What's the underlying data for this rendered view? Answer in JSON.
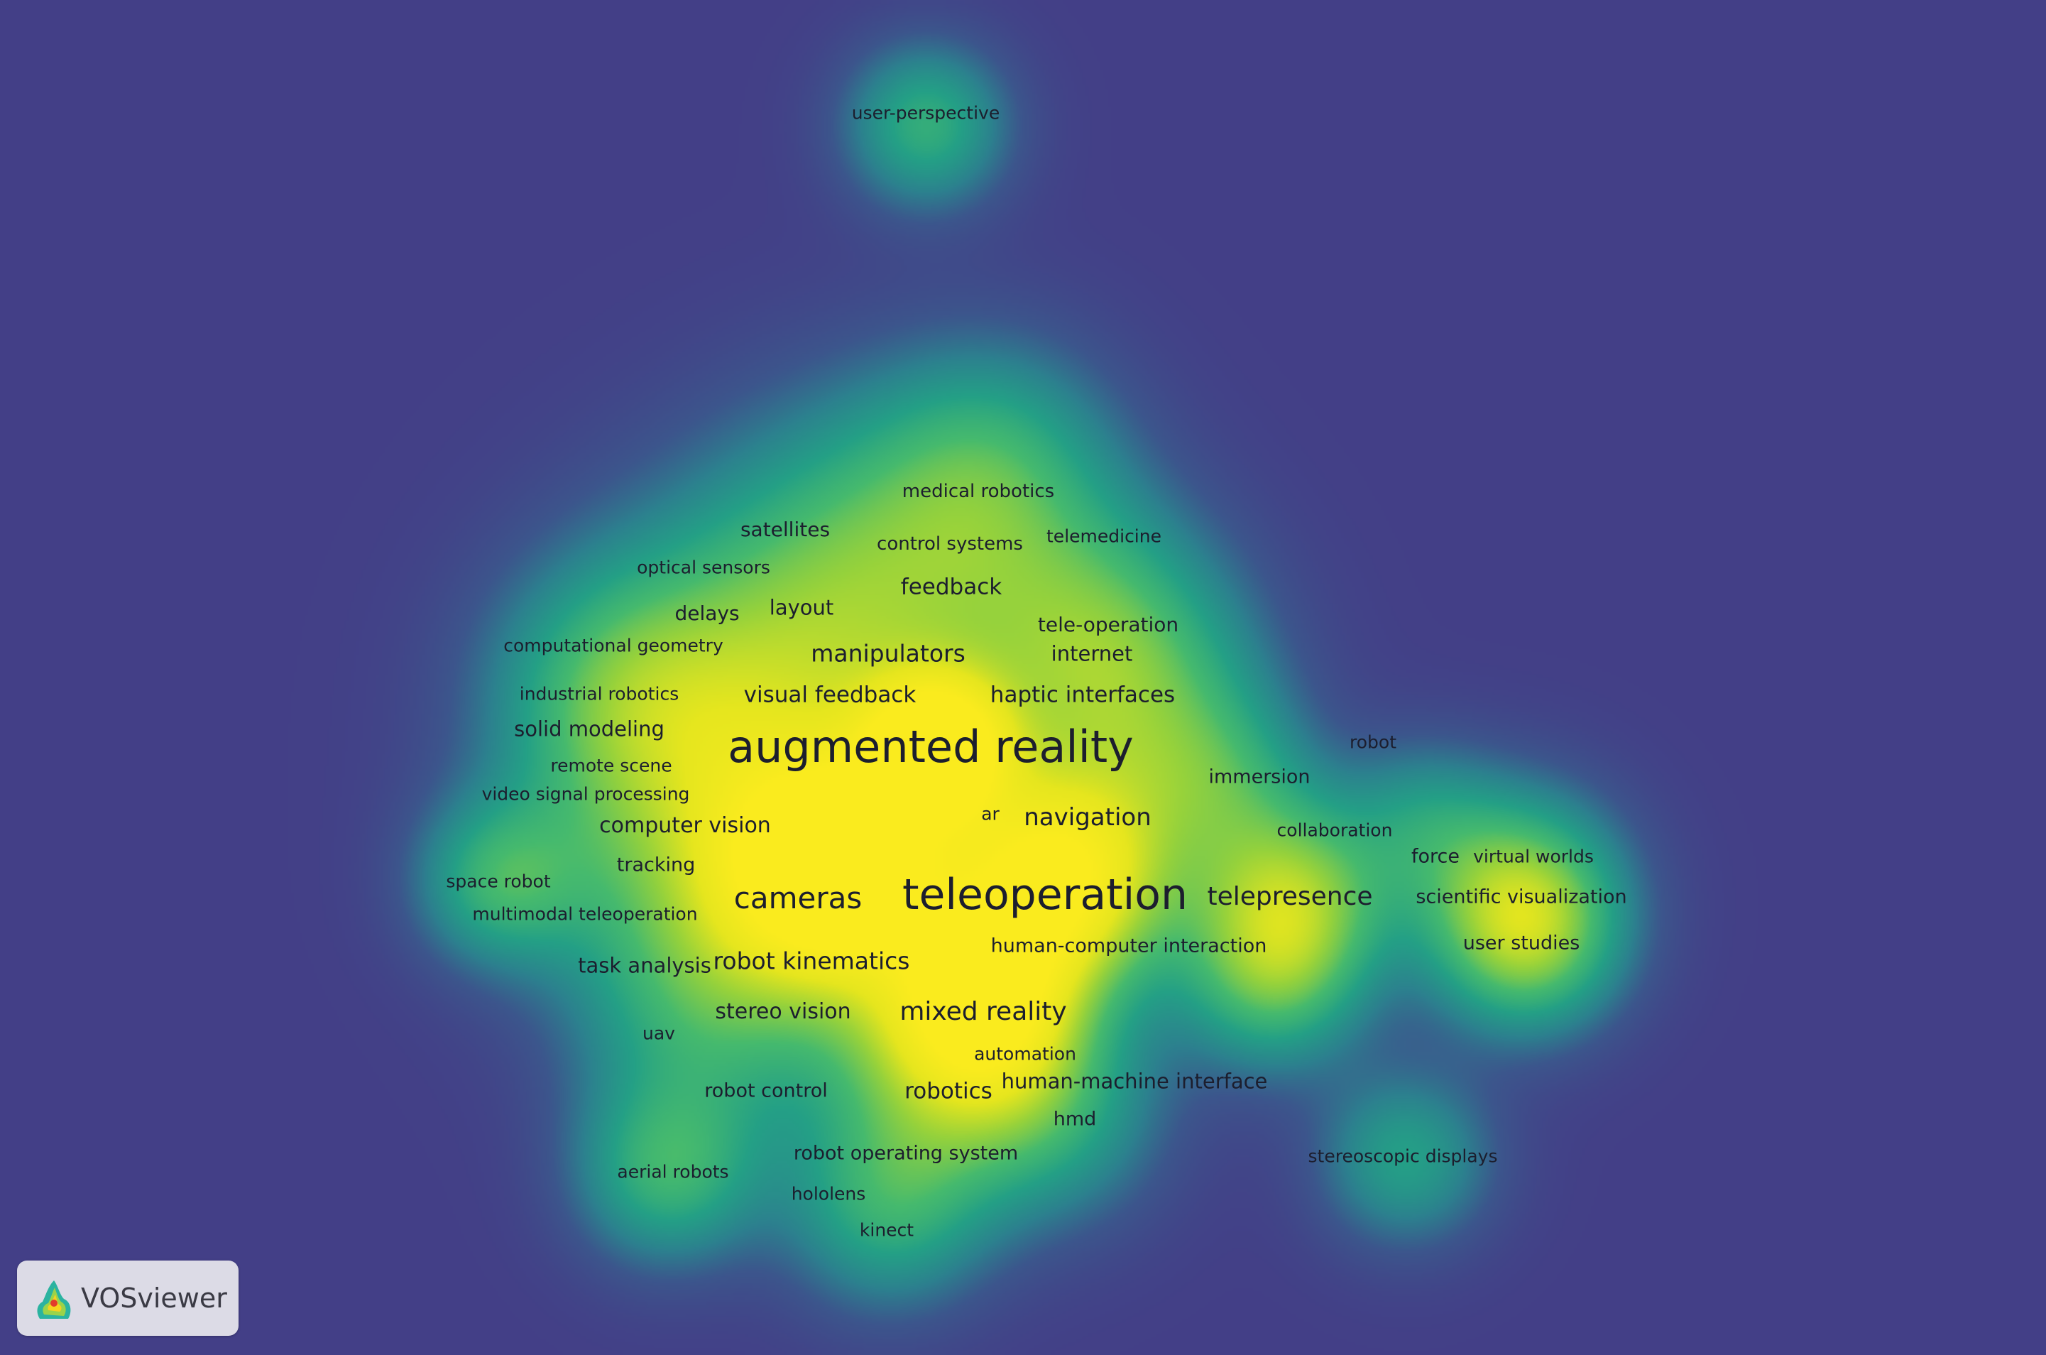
{
  "app": {
    "logo_text": "VOSviewer"
  },
  "colors": {
    "background": "#433f87",
    "teal": "#2c8b8c",
    "green": "#3cb878",
    "yellow": "#f6ea1e",
    "label": "#1c1e2e"
  },
  "terms": [
    {
      "text": "user-perspective",
      "weight": 1.0
    },
    {
      "text": "medical robotics",
      "weight": 1.0
    },
    {
      "text": "satellites",
      "weight": 1.0
    },
    {
      "text": "control systems",
      "weight": 1.0
    },
    {
      "text": "telemedicine",
      "weight": 1.0
    },
    {
      "text": "optical sensors",
      "weight": 1.0
    },
    {
      "text": "feedback",
      "weight": 2.0
    },
    {
      "text": "delays",
      "weight": 1.0
    },
    {
      "text": "layout",
      "weight": 1.2
    },
    {
      "text": "tele-operation",
      "weight": 1.2
    },
    {
      "text": "computational geometry",
      "weight": 1.0
    },
    {
      "text": "manipulators",
      "weight": 2.0
    },
    {
      "text": "internet",
      "weight": 1.2
    },
    {
      "text": "industrial robotics",
      "weight": 1.0
    },
    {
      "text": "visual feedback",
      "weight": 1.6
    },
    {
      "text": "haptic interfaces",
      "weight": 1.6
    },
    {
      "text": "solid modeling",
      "weight": 1.4
    },
    {
      "text": "augmented reality",
      "weight": 6.0
    },
    {
      "text": "robot",
      "weight": 1.0
    },
    {
      "text": "remote scene",
      "weight": 1.0
    },
    {
      "text": "immersion",
      "weight": 1.2
    },
    {
      "text": "video signal processing",
      "weight": 1.0
    },
    {
      "text": "ar",
      "weight": 1.0
    },
    {
      "text": "navigation",
      "weight": 2.2
    },
    {
      "text": "computer vision",
      "weight": 1.6
    },
    {
      "text": "collaboration",
      "weight": 1.0
    },
    {
      "text": "tracking",
      "weight": 1.0
    },
    {
      "text": "force",
      "weight": 1.0
    },
    {
      "text": "virtual worlds",
      "weight": 1.0
    },
    {
      "text": "space robot",
      "weight": 1.0
    },
    {
      "text": "cameras",
      "weight": 4.0
    },
    {
      "text": "teleoperation",
      "weight": 6.0
    },
    {
      "text": "telepresence",
      "weight": 2.2
    },
    {
      "text": "scientific visualization",
      "weight": 1.2
    },
    {
      "text": "multimodal teleoperation",
      "weight": 1.0
    },
    {
      "text": "user studies",
      "weight": 1.2
    },
    {
      "text": "human-computer interaction",
      "weight": 1.2
    },
    {
      "text": "task analysis",
      "weight": 1.4
    },
    {
      "text": "robot kinematics",
      "weight": 2.2
    },
    {
      "text": "stereo vision",
      "weight": 1.6
    },
    {
      "text": "mixed reality",
      "weight": 2.4
    },
    {
      "text": "uav",
      "weight": 1.0
    },
    {
      "text": "automation",
      "weight": 1.0
    },
    {
      "text": "human-machine interface",
      "weight": 1.6
    },
    {
      "text": "robot control",
      "weight": 1.2
    },
    {
      "text": "robotics",
      "weight": 1.8
    },
    {
      "text": "hmd",
      "weight": 1.2
    },
    {
      "text": "stereoscopic displays",
      "weight": 1.0
    },
    {
      "text": "robot operating system",
      "weight": 1.2
    },
    {
      "text": "aerial robots",
      "weight": 1.0
    },
    {
      "text": "hololens",
      "weight": 1.0
    },
    {
      "text": "kinect",
      "weight": 1.0
    }
  ]
}
